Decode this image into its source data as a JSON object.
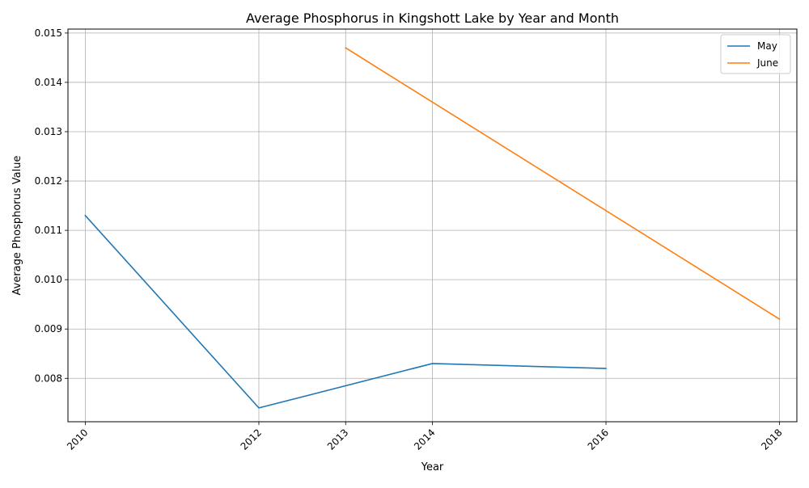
{
  "chart_data": {
    "type": "line",
    "title": "Average Phosphorus in Kingshott Lake by Year and Month",
    "xlabel": "Year",
    "ylabel": "Average Phosphorus Value",
    "x_ticks": [
      2010,
      2012,
      2013,
      2014,
      2016,
      2018
    ],
    "x_tick_labels": [
      "2010",
      "2012",
      "2013",
      "2014",
      "2016",
      "2018"
    ],
    "y_ticks": [
      0.008,
      0.009,
      0.01,
      0.011,
      0.012,
      0.013,
      0.014,
      0.015
    ],
    "y_tick_labels": [
      "0.008",
      "0.009",
      "0.010",
      "0.011",
      "0.012",
      "0.013",
      "0.014",
      "0.015"
    ],
    "xlim": [
      2009.8,
      2018.2
    ],
    "ylim": [
      0.00712,
      0.01508
    ],
    "grid": true,
    "legend_position": "top-right",
    "series": [
      {
        "name": "May",
        "color": "#1f77b4",
        "points": [
          {
            "x": 2010,
            "y": 0.0113
          },
          {
            "x": 2012,
            "y": 0.0074
          },
          {
            "x": 2014,
            "y": 0.0083
          },
          {
            "x": 2016,
            "y": 0.0082
          }
        ]
      },
      {
        "name": "June",
        "color": "#ff7f0e",
        "points": [
          {
            "x": 2013,
            "y": 0.0147
          },
          {
            "x": 2018,
            "y": 0.0092
          }
        ]
      }
    ]
  }
}
